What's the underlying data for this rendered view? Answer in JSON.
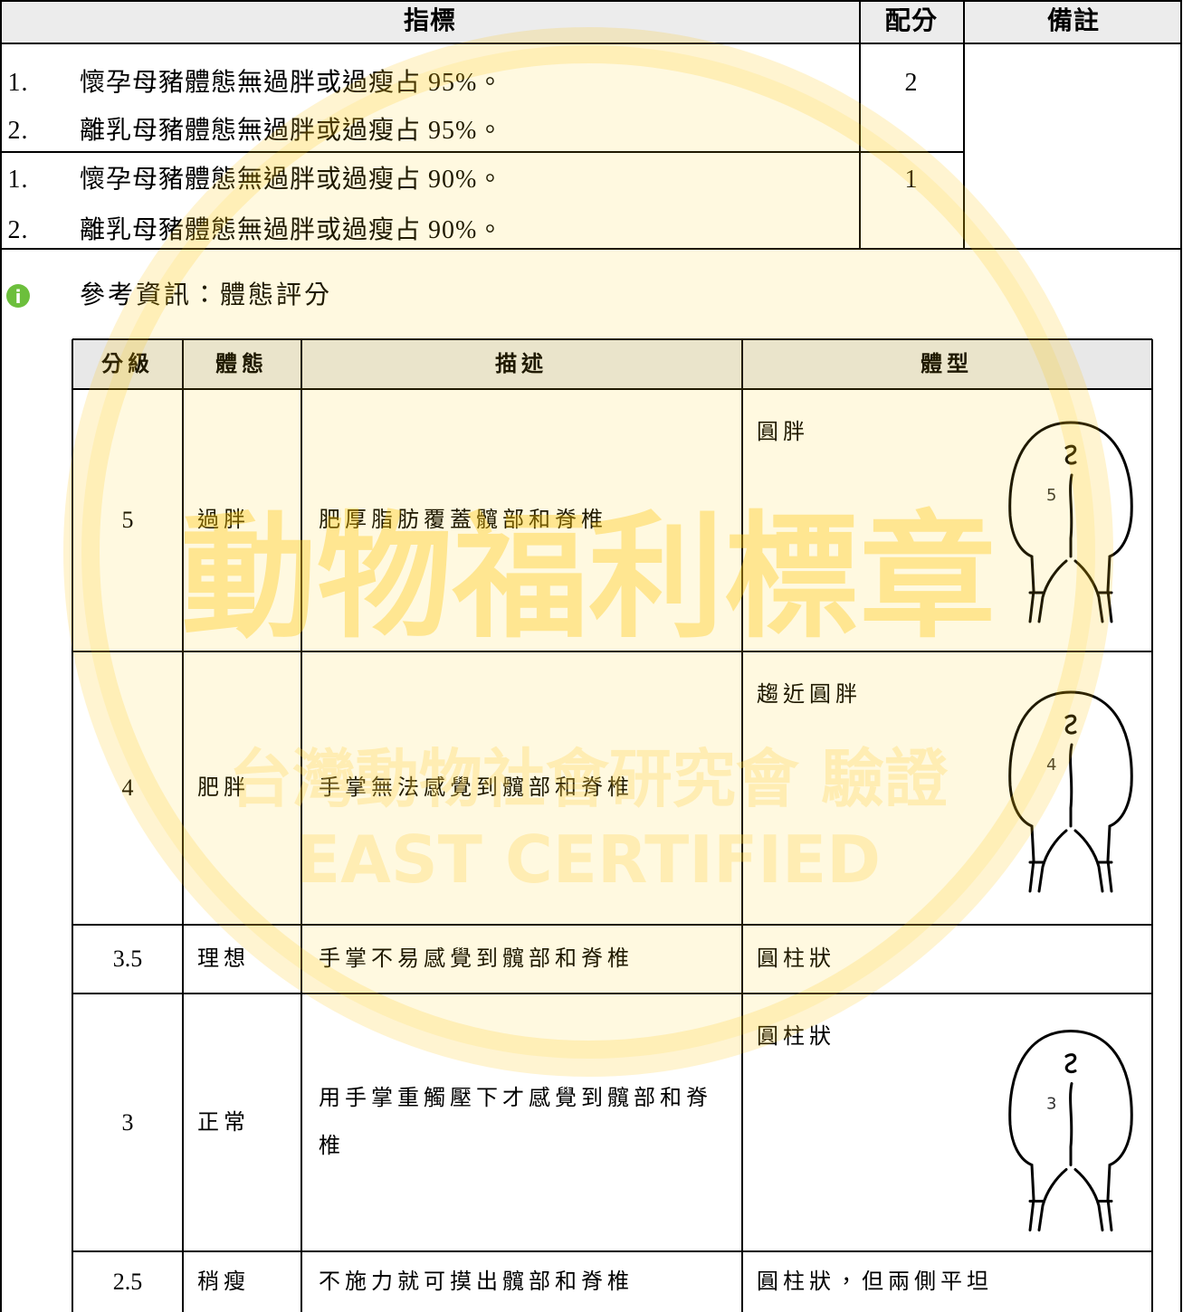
{
  "watermark": {
    "title": "動物福利標章",
    "subtitle": "台灣動物社會研究會 驗證",
    "english": "EAST CERTIFIED"
  },
  "table": {
    "headers": [
      "指標",
      "配分",
      "備註"
    ],
    "rows": [
      {
        "items": [
          {
            "num": "1.",
            "text": "懷孕母豬體態無過胖或過瘦占 95%。"
          },
          {
            "num": "2.",
            "text": "離乳母豬體態無過胖或過瘦占 95%。"
          }
        ],
        "score": "2"
      },
      {
        "items": [
          {
            "num": "1.",
            "text": "懷孕母豬體態無過胖或過瘦占 90%。"
          },
          {
            "num": "2.",
            "text": "離乳母豬體態無過胖或過瘦占 90%。"
          }
        ],
        "score": "1"
      }
    ]
  },
  "reference": {
    "title": "參考資訊：體態評分",
    "table": {
      "headers": [
        "分級",
        "體態",
        "描述",
        "體型"
      ],
      "rows": [
        {
          "grade": "5",
          "condition": "過胖",
          "description": "肥厚脂肪覆蓋髖部和脊椎",
          "shape": "圓胖",
          "figure_label": "5"
        },
        {
          "grade": "4",
          "condition": "肥胖",
          "description": "手掌無法感覺到髖部和脊椎",
          "shape": "趨近圓胖",
          "figure_label": "4"
        },
        {
          "grade": "3.5",
          "condition": "理想",
          "description": "手掌不易感覺到髖部和脊椎",
          "shape": "圓柱狀"
        },
        {
          "grade": "3",
          "condition": "正常",
          "description": "用手掌重觸壓下才感覺到髖部和脊椎",
          "shape": "圓柱狀",
          "figure_label": "3"
        },
        {
          "grade": "2.5",
          "condition": "稍瘦",
          "description": "不施力就可摸出髖部和脊椎",
          "shape": "圓柱狀，但兩側平坦"
        }
      ]
    }
  }
}
